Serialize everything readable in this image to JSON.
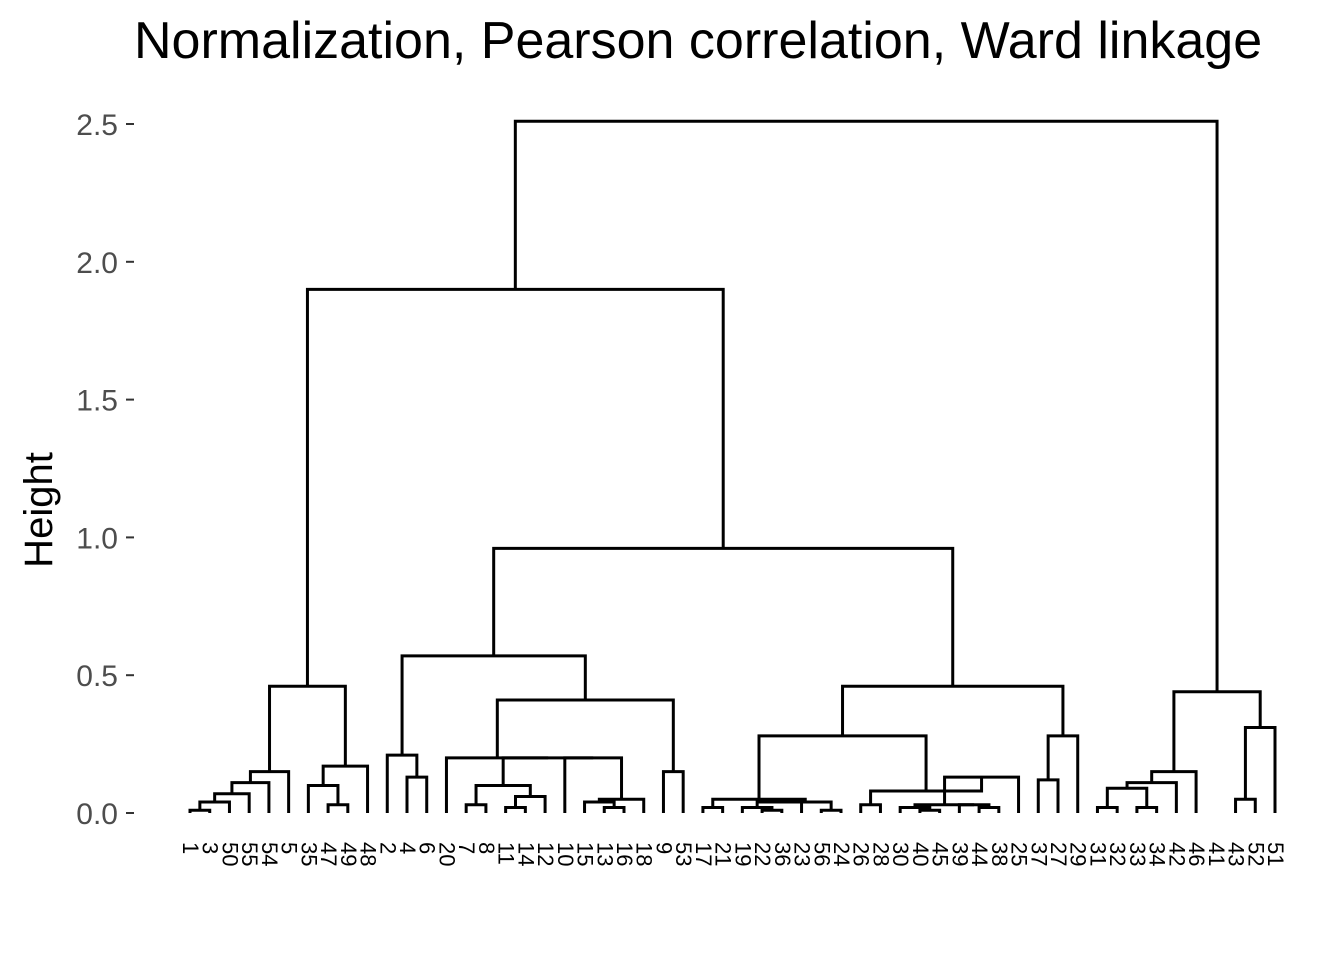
{
  "chart_data": {
    "type": "dendrogram",
    "title": "Normalization, Pearson correlation, Ward linkage",
    "xlabel": "",
    "ylabel": "Height",
    "ylim": [
      0,
      2.5
    ],
    "yticks": [
      0.0,
      0.5,
      1.0,
      1.5,
      2.0,
      2.5
    ],
    "ytick_labels": [
      "0.0",
      "0.5",
      "1.0",
      "1.5",
      "2.0",
      "2.5"
    ],
    "leaves": [
      "1",
      "3",
      "50",
      "55",
      "54",
      "5",
      "35",
      "47",
      "49",
      "48",
      "2",
      "4",
      "6",
      "20",
      "7",
      "8",
      "11",
      "14",
      "12",
      "10",
      "15",
      "13",
      "16",
      "18",
      "9",
      "53",
      "17",
      "21",
      "19",
      "22",
      "36",
      "23",
      "56",
      "24",
      "26",
      "28",
      "30",
      "40",
      "45",
      "39",
      "44",
      "38",
      "25",
      "37",
      "27",
      "29",
      "31",
      "32",
      "33",
      "34",
      "42",
      "46",
      "41",
      "43",
      "52",
      "51"
    ],
    "merges": [
      {
        "l": 0,
        "r": 1,
        "h": 0.01
      },
      {
        "l": "m0",
        "r": 2,
        "h": 0.04
      },
      {
        "l": "m1",
        "r": 3,
        "h": 0.07
      },
      {
        "l": "m2",
        "r": 4,
        "h": 0.11
      },
      {
        "l": "m3",
        "r": 5,
        "h": 0.15
      },
      {
        "l": 7,
        "r": 8,
        "h": 0.03
      },
      {
        "l": 6,
        "r": "m5",
        "h": 0.1
      },
      {
        "l": "m6",
        "r": 9,
        "h": 0.17
      },
      {
        "l": "m4",
        "r": "m7",
        "h": 0.46
      },
      {
        "l": 11,
        "r": 12,
        "h": 0.13
      },
      {
        "l": 10,
        "r": "m9",
        "h": 0.21
      },
      {
        "l": 14,
        "r": 15,
        "h": 0.03
      },
      {
        "l": 16,
        "r": 17,
        "h": 0.02
      },
      {
        "l": "m12",
        "r": 18,
        "h": 0.06
      },
      {
        "l": "m11",
        "r": "m13",
        "h": 0.1
      },
      {
        "l": 21,
        "r": 22,
        "h": 0.02
      },
      {
        "l": 20,
        "r": "m15",
        "h": 0.04
      },
      {
        "l": "m16",
        "r": 23,
        "h": 0.05
      },
      {
        "l": 19,
        "r": "m17",
        "h": 0.2
      },
      {
        "l": "m14",
        "r": "m18",
        "h": 0.2
      },
      {
        "l": "m19",
        "r": 13,
        "h": 0.2
      },
      {
        "l": 24,
        "r": 25,
        "h": 0.15
      },
      {
        "l": "m20",
        "r": "m21",
        "h": 0.41
      },
      {
        "l": "m10",
        "r": "m22",
        "h": 0.57
      },
      {
        "l": 26,
        "r": 27,
        "h": 0.02
      },
      {
        "l": 29,
        "r": 30,
        "h": 0.01
      },
      {
        "l": 28,
        "r": "m25",
        "h": 0.02
      },
      {
        "l": "m26",
        "r": 31,
        "h": 0.04
      },
      {
        "l": 32,
        "r": 33,
        "h": 0.01
      },
      {
        "l": "m27",
        "r": "m28",
        "h": 0.04
      },
      {
        "l": "m24",
        "r": "m29",
        "h": 0.05
      },
      {
        "l": 34,
        "r": 35,
        "h": 0.03
      },
      {
        "l": 37,
        "r": 38,
        "h": 0.01
      },
      {
        "l": 36,
        "r": "m32",
        "h": 0.02
      },
      {
        "l": 40,
        "r": 41,
        "h": 0.02
      },
      {
        "l": 39,
        "r": "m34",
        "h": 0.03
      },
      {
        "l": "m33",
        "r": "m35",
        "h": 0.03
      },
      {
        "l": "m36",
        "r": 42,
        "h": 0.13
      },
      {
        "l": "m31",
        "r": "m37",
        "h": 0.08
      },
      {
        "l": "m30",
        "r": "m38",
        "h": 0.28
      },
      {
        "l": 43,
        "r": 44,
        "h": 0.12
      },
      {
        "l": "m40",
        "r": 45,
        "h": 0.28
      },
      {
        "l": "m39",
        "r": "m41",
        "h": 0.46
      },
      {
        "l": "m23",
        "r": "m42",
        "h": 0.96
      },
      {
        "l": "m8",
        "r": "m43",
        "h": 1.9
      },
      {
        "l": 46,
        "r": 47,
        "h": 0.02
      },
      {
        "l": 48,
        "r": 49,
        "h": 0.02
      },
      {
        "l": "m45",
        "r": "m46",
        "h": 0.09
      },
      {
        "l": "m47",
        "r": 50,
        "h": 0.11
      },
      {
        "l": "m48",
        "r": 51,
        "h": 0.15
      },
      {
        "l": 53,
        "r": 54,
        "h": 0.05
      },
      {
        "l": "m50",
        "r": 55,
        "h": 0.31
      },
      {
        "l": "m49",
        "r": "m51",
        "h": 0.44
      },
      {
        "l": "m44",
        "r": "m52",
        "h": 2.51
      }
    ]
  }
}
